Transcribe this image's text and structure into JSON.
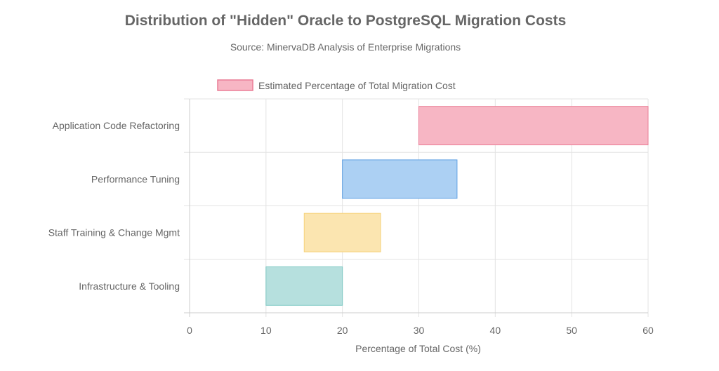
{
  "chart_data": {
    "type": "bar",
    "orientation": "horizontal",
    "floating": true,
    "title": "Distribution of \"Hidden\" Oracle to PostgreSQL Migration Costs",
    "subtitle": "Source: MinervaDB Analysis of Enterprise Migrations",
    "xlabel": "Percentage of Total Cost (%)",
    "ylabel": "",
    "xlim": [
      0,
      60
    ],
    "xticks": [
      0,
      10,
      20,
      30,
      40,
      50,
      60
    ],
    "grid": true,
    "legend_position": "top",
    "categories": [
      "Application Code Refactoring",
      "Performance Tuning",
      "Staff Training & Change Mgmt",
      "Infrastructure & Tooling"
    ],
    "series": [
      {
        "name": "Estimated Percentage of Total Migration Cost",
        "ranges": [
          [
            30,
            60
          ],
          [
            20,
            35
          ],
          [
            15,
            25
          ],
          [
            10,
            20
          ]
        ]
      }
    ],
    "bar_fill_colors": [
      "#f7b6c4",
      "#acd0f3",
      "#fbe5b0",
      "#b6e0de"
    ],
    "bar_border_colors": [
      "#ea7d96",
      "#5ea0e3",
      "#f6d27a",
      "#7ec8c4"
    ]
  }
}
